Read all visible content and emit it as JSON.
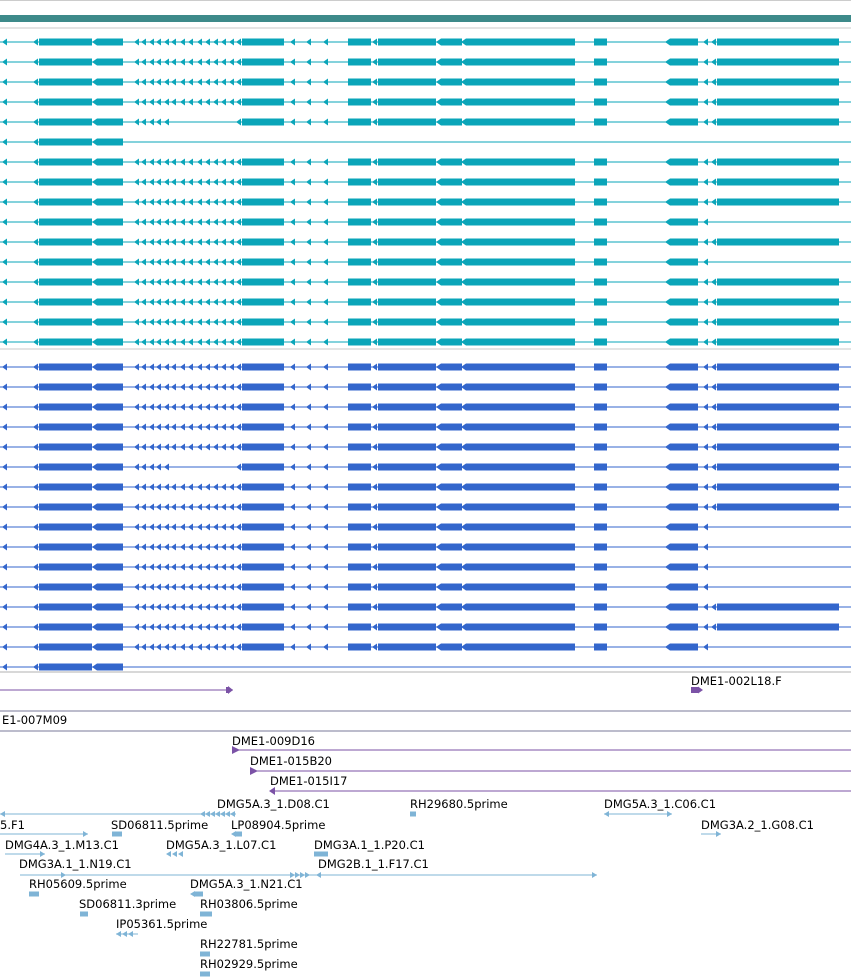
{
  "colors": {
    "header_bar": "#3d8a8a",
    "track_cyan": "#0aa5b9",
    "track_blue": "#3366cc",
    "purple": "#7b52a6",
    "est": "#7fb4d6",
    "separator": "#b0b0b0"
  },
  "gene_models": {
    "cyan_rows": [
      "full",
      "full",
      "full",
      "full",
      "full_gap",
      "short",
      "full",
      "full",
      "full",
      "noexon",
      "full",
      "noexon",
      "full",
      "full",
      "full",
      "full"
    ],
    "blue_rows": [
      "full",
      "full",
      "full",
      "full",
      "full",
      "full_gap",
      "full",
      "full",
      "noexon",
      "noexon",
      "noexon",
      "noexon",
      "full",
      "full",
      "noexon",
      "short"
    ]
  },
  "clones": [
    {
      "label": "",
      "dir": "fwd"
    },
    {
      "label": "DME1-002L18.F",
      "dir": "fwd"
    },
    {
      "label": "E1-007M09",
      "dir": "none"
    },
    {
      "label": "DME1-009D16",
      "dir": "fwd"
    },
    {
      "label": "DME1-015B20",
      "dir": "fwd"
    },
    {
      "label": "DME1-015I17",
      "dir": "rev"
    }
  ],
  "ests": [
    {
      "label": "DMG5A.3_1.D08.C1"
    },
    {
      "label": "RH29680.5prime"
    },
    {
      "label": "DMG5A.3_1.C06.C1"
    },
    {
      "label": "5.F1"
    },
    {
      "label": "SD06811.5prime"
    },
    {
      "label": "LP08904.5prime"
    },
    {
      "label": "DMG3A.2_1.G08.C1"
    },
    {
      "label": "DMG4A.3_1.M13.C1"
    },
    {
      "label": "DMG5A.3_1.L07.C1"
    },
    {
      "label": "DMG3A.1_1.P20.C1"
    },
    {
      "label": "DMG3A.1_1.N19.C1"
    },
    {
      "label": "DMG2B.1_1.F17.C1"
    },
    {
      "label": "RH05609.5prime"
    },
    {
      "label": "DMG5A.3_1.N21.C1"
    },
    {
      "label": "SD06811.3prime"
    },
    {
      "label": "RH03806.5prime"
    },
    {
      "label": "IP05361.5prime"
    },
    {
      "label": "RH22781.5prime"
    },
    {
      "label": "RH02929.5prime"
    }
  ]
}
